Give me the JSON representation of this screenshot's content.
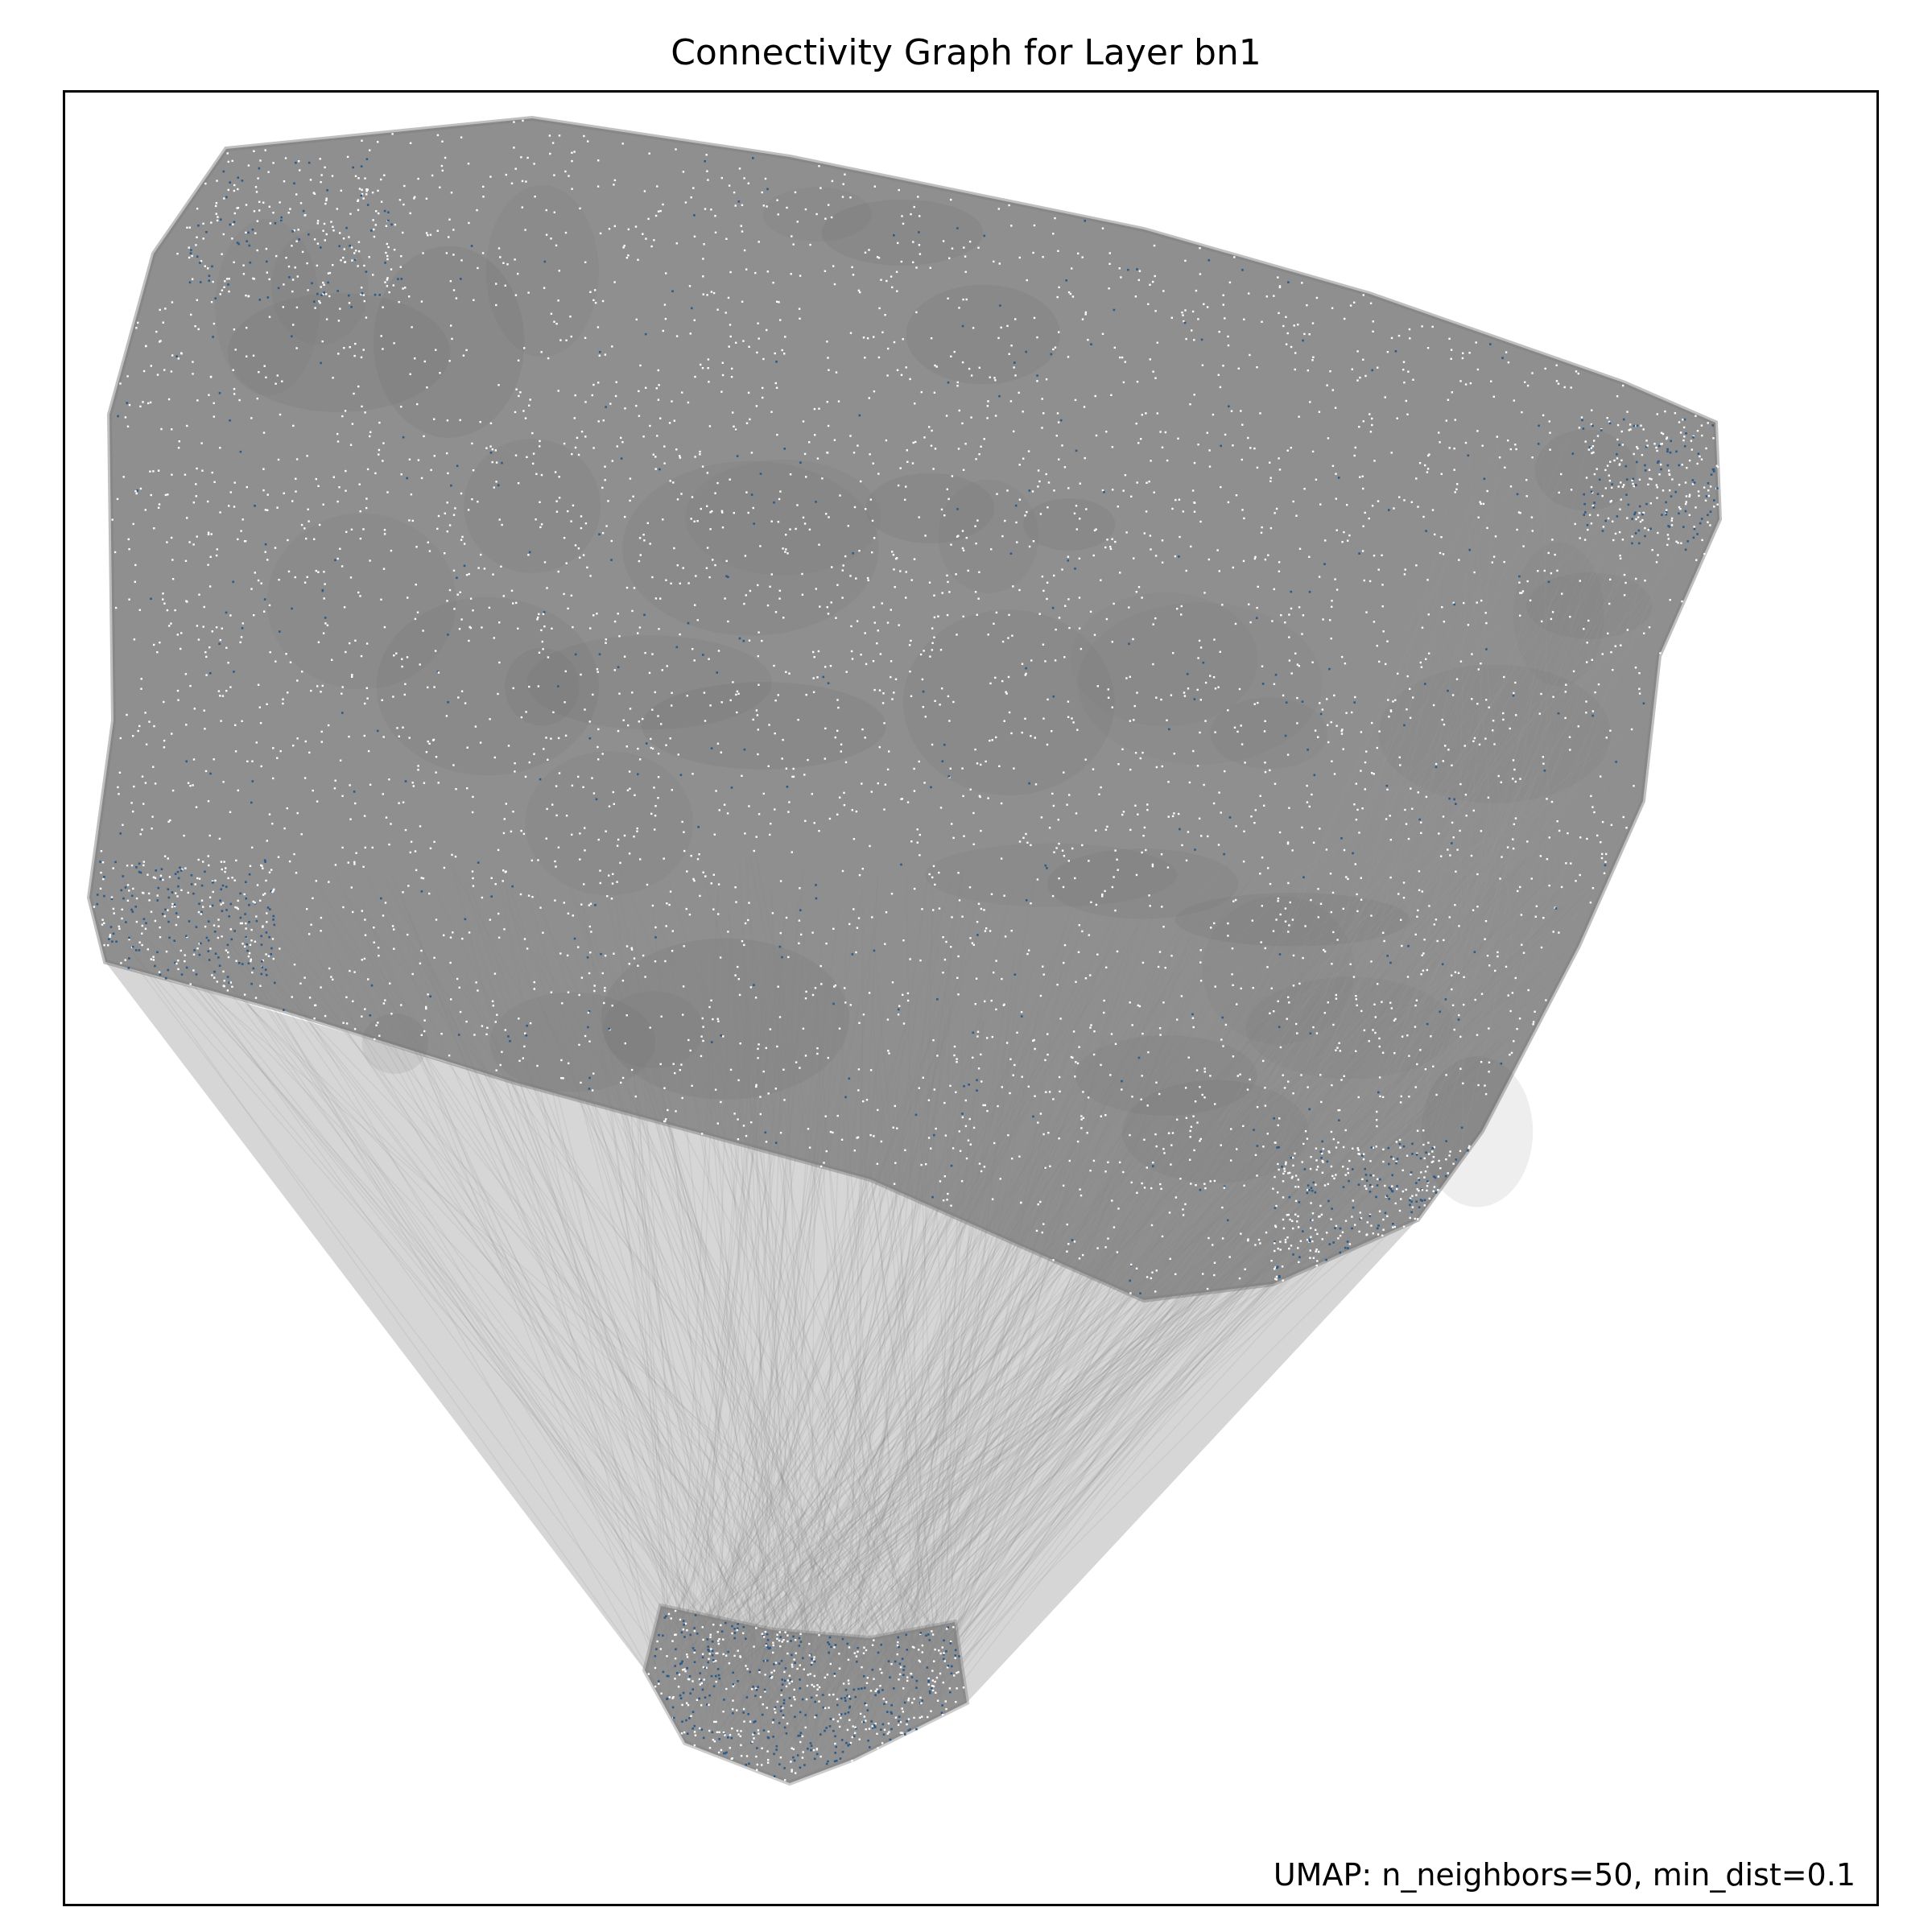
{
  "chart_data": {
    "type": "scatter",
    "title": "Connectivity Graph for Layer bn1",
    "annotation": "UMAP: n_neighbors=50, min_dist=0.1",
    "xlabel": "",
    "ylabel": "",
    "axis_ticks": false,
    "grid": false,
    "legend": "none",
    "colors": {
      "edges": "#7f7f7f",
      "points_light": "#ffffff",
      "points_dark": "#2e5a87"
    }
  }
}
